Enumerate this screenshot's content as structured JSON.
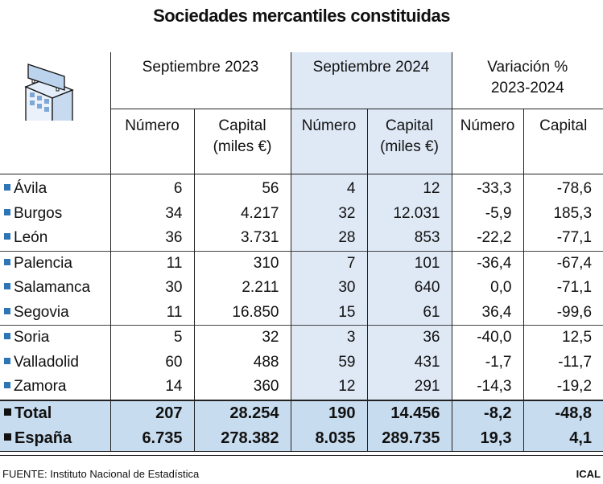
{
  "title": "Sociedades mercantiles constituidas",
  "chart_data": {
    "type": "table",
    "title": "Sociedades mercantiles constituidas",
    "group_headers": [
      "Septiembre 2023",
      "Septiembre 2024",
      "Variación % 2023-2024"
    ],
    "variation_header_line1": "Variación %",
    "variation_header_line2": "2023-2024",
    "columns": [
      "Número",
      "Capital (miles €)",
      "Número",
      "Capital (miles €)",
      "Número",
      "Capital"
    ],
    "col_labels": {
      "numero": "Número",
      "capital_l1": "Capital",
      "capital_l2": "(miles €)",
      "capital": "Capital"
    },
    "rows": [
      {
        "name": "Ávila",
        "values": [
          "6",
          "56",
          "4",
          "12",
          "-33,3",
          "-78,6"
        ]
      },
      {
        "name": "Burgos",
        "values": [
          "34",
          "4.217",
          "32",
          "12.031",
          "-5,9",
          "185,3"
        ]
      },
      {
        "name": "León",
        "values": [
          "36",
          "3.731",
          "28",
          "853",
          "-22,2",
          "-77,1"
        ]
      },
      {
        "name": "Palencia",
        "values": [
          "11",
          "310",
          "7",
          "101",
          "-36,4",
          "-67,4"
        ]
      },
      {
        "name": "Salamanca",
        "values": [
          "30",
          "2.211",
          "30",
          "640",
          "0,0",
          "-71,1"
        ]
      },
      {
        "name": "Segovia",
        "values": [
          "11",
          "16.850",
          "15",
          "61",
          "36,4",
          "-99,6"
        ]
      },
      {
        "name": "Soria",
        "values": [
          "5",
          "32",
          "3",
          "36",
          "-40,0",
          "12,5"
        ]
      },
      {
        "name": "Valladolid",
        "values": [
          "60",
          "488",
          "59",
          "431",
          "-1,7",
          "-11,7"
        ]
      },
      {
        "name": "Zamora",
        "values": [
          "14",
          "360",
          "12",
          "291",
          "-14,3",
          "-19,2"
        ]
      }
    ],
    "totals": [
      {
        "name": "Total",
        "values": [
          "207",
          "28.254",
          "190",
          "14.456",
          "-8,2",
          "-48,8"
        ]
      },
      {
        "name": "España",
        "values": [
          "6.735",
          "278.382",
          "8.035",
          "289.735",
          "19,3",
          "4,1"
        ]
      }
    ]
  },
  "footer": {
    "source": "FUENTE: Instituto Nacional de Estadística",
    "brand": "ICAL"
  },
  "colors": {
    "highlight_column": "#dfe9f6",
    "total_rows": "#c8dcef",
    "bullet": "#2e75b6"
  },
  "icon": "office-building-icon"
}
